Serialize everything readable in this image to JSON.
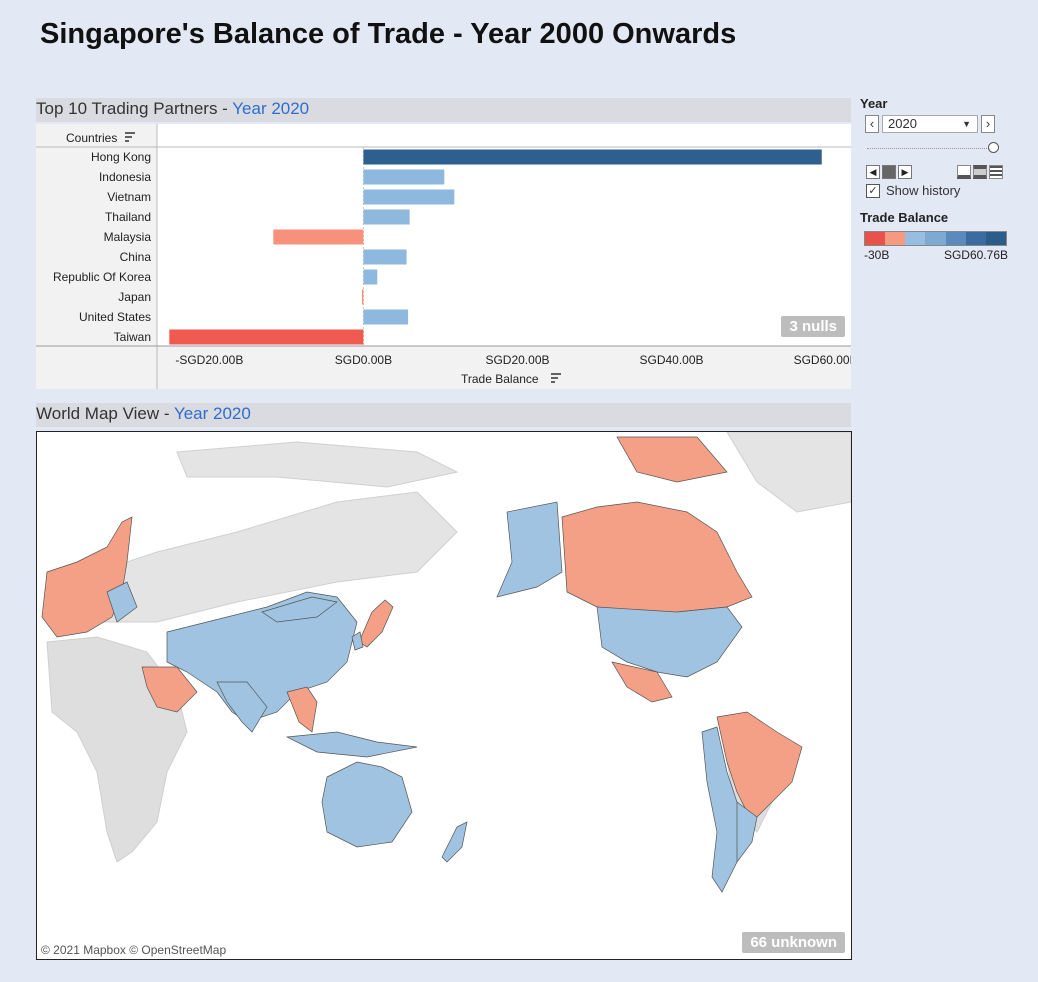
{
  "page_title": "Singapore's Balance of Trade - Year 2000 Onwards",
  "top10": {
    "header_prefix": "Top 10 Trading Partners - ",
    "header_year": "Year 2020",
    "row_header": "Countries",
    "x_axis_title": "Trade Balance",
    "nulls_badge": "3 nulls"
  },
  "map": {
    "header_prefix": "World Map View - ",
    "header_year": "Year 2020",
    "attribution": "© 2021 Mapbox © OpenStreetMap",
    "unknown_badge": "66 unknown"
  },
  "filter": {
    "label": "Year",
    "selected_year": "2020",
    "prev_icon": "chevron-left-icon",
    "next_icon": "chevron-right-icon",
    "show_history_label": "Show history",
    "show_history_checked": true
  },
  "legend": {
    "title": "Trade Balance",
    "min_label": "-30B",
    "max_label": "SGD60.76B",
    "colors": [
      "#e8524a",
      "#f59a80",
      "#97bde0",
      "#7ea9d3",
      "#5b8abf",
      "#3c6ba1",
      "#2b5c8c"
    ]
  },
  "chart_data": {
    "type": "bar",
    "orientation": "horizontal",
    "categories": [
      "Hong Kong",
      "Indonesia",
      "Vietnam",
      "Thailand",
      "Malaysia",
      "China",
      "Republic Of Korea",
      "Japan",
      "United States",
      "Taiwan"
    ],
    "values": [
      59.5,
      10.5,
      11.8,
      6.0,
      -11.7,
      5.6,
      1.8,
      -0.2,
      5.8,
      -25.2
    ],
    "xlabel": "Trade Balance",
    "ylabel": "Countries",
    "xlim": [
      -25.5,
      62
    ],
    "x_ticks": [
      -20,
      0,
      20,
      40,
      60
    ],
    "x_tick_labels": [
      "-SGD20.00B",
      "SGD0.00B",
      "SGD20.00B",
      "SGD40.00B",
      "SGD60.00B"
    ],
    "bar_colors": [
      "#2d5f8f",
      "#8fb8de",
      "#8fb8de",
      "#8fb8de",
      "#f7917c",
      "#8fb8de",
      "#8fb8de",
      "#f7917c",
      "#8fb8de",
      "#ef5a51"
    ]
  }
}
